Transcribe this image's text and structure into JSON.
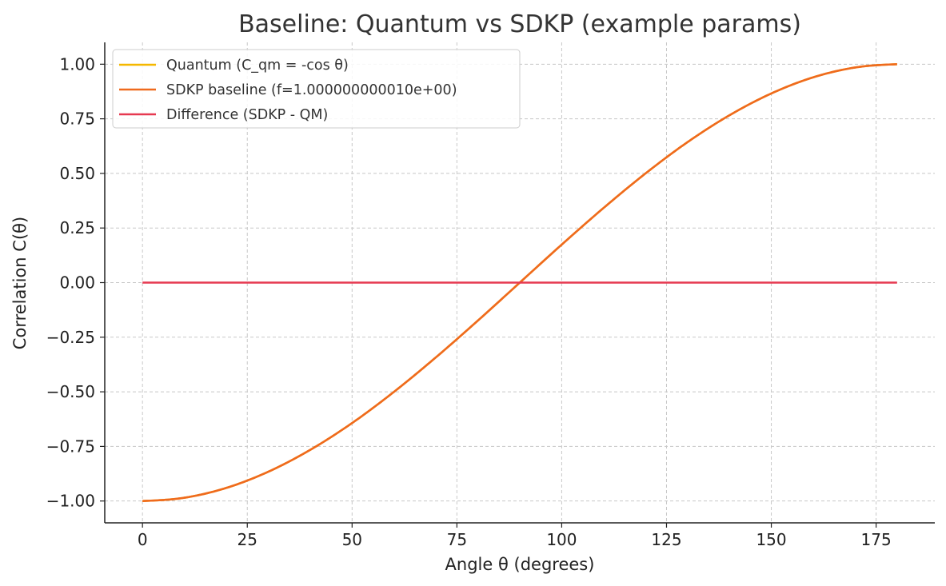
{
  "chart_data": {
    "type": "line",
    "title": "Baseline: Quantum vs SDKP (example params)",
    "xlabel": "Angle θ (degrees)",
    "ylabel": "Correlation C(θ)",
    "xlim": [
      -9,
      189
    ],
    "ylim": [
      -1.1,
      1.1
    ],
    "x_ticks": [
      0,
      25,
      50,
      75,
      100,
      125,
      150,
      175
    ],
    "x_tick_labels": [
      "0",
      "25",
      "50",
      "75",
      "100",
      "125",
      "150",
      "175"
    ],
    "y_ticks": [
      1.0,
      0.75,
      0.5,
      0.25,
      0.0,
      -0.25,
      -0.5,
      -0.75,
      -1.0
    ],
    "y_tick_labels": [
      "1.00",
      "0.75",
      "0.50",
      "0.25",
      "0.00",
      "−0.25",
      "−0.50",
      "−0.75",
      "−1.00"
    ],
    "grid": true,
    "legend_position": "top-left",
    "x": [
      0,
      10,
      20,
      30,
      40,
      50,
      60,
      70,
      80,
      90,
      100,
      110,
      120,
      130,
      140,
      150,
      160,
      170,
      180
    ],
    "series": [
      {
        "name": "Quantum (C_qm = -cos θ)",
        "color": "#f5b800",
        "values": [
          -1.0,
          -0.985,
          -0.94,
          -0.866,
          -0.766,
          -0.643,
          -0.5,
          -0.342,
          -0.174,
          0.0,
          0.174,
          0.342,
          0.5,
          0.643,
          0.766,
          0.866,
          0.94,
          0.985,
          1.0
        ]
      },
      {
        "name": "SDKP baseline (f=1.000000000010e+00)",
        "color": "#ef6a1e",
        "values": [
          -1.0,
          -0.985,
          -0.94,
          -0.866,
          -0.766,
          -0.643,
          -0.5,
          -0.342,
          -0.174,
          0.0,
          0.174,
          0.342,
          0.5,
          0.643,
          0.766,
          0.866,
          0.94,
          0.985,
          1.0
        ]
      },
      {
        "name": "Difference (SDKP - QM)",
        "color": "#e63950",
        "values": [
          0,
          0,
          0,
          0,
          0,
          0,
          0,
          0,
          0,
          0,
          0,
          0,
          0,
          0,
          0,
          0,
          0,
          0,
          0
        ]
      }
    ]
  }
}
